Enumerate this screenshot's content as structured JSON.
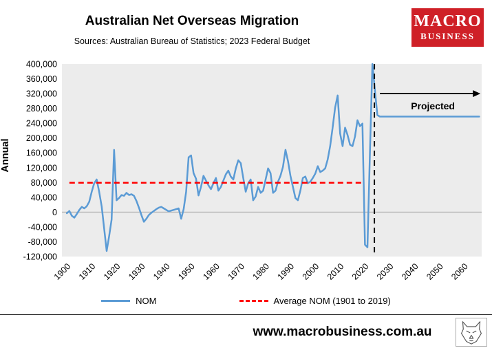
{
  "header": {
    "title": "Australian Net Overseas Migration",
    "subtitle": "Sources: Australian Bureau of Statistics; 2023 Federal Budget"
  },
  "logo": {
    "line1": "MACRO",
    "line2": "BUSINESS",
    "bg_color": "#cf2027",
    "text_color": "#ffffff"
  },
  "chart_data": {
    "type": "line",
    "title": "Australian Net Overseas Migration",
    "xlabel": "",
    "ylabel": "Annual",
    "ylim": [
      -120000,
      400000
    ],
    "ytick_step": 40000,
    "xlim": [
      1898,
      2067
    ],
    "xticks": [
      1900,
      1910,
      1920,
      1930,
      1940,
      1950,
      1960,
      1970,
      1980,
      1990,
      2000,
      2010,
      2020,
      2030,
      2040,
      2050,
      2060
    ],
    "plot_bg": "#ececec",
    "zero_line_color": "#a0a0a0",
    "series": [
      {
        "name": "NOM",
        "color": "#5b9bd5",
        "style": "solid",
        "points": [
          [
            1900,
            -3000
          ],
          [
            1901,
            3000
          ],
          [
            1902,
            -10000
          ],
          [
            1903,
            -15000
          ],
          [
            1904,
            -5000
          ],
          [
            1905,
            6000
          ],
          [
            1906,
            14000
          ],
          [
            1907,
            10000
          ],
          [
            1908,
            16000
          ],
          [
            1909,
            28000
          ],
          [
            1910,
            55000
          ],
          [
            1911,
            78000
          ],
          [
            1912,
            88000
          ],
          [
            1913,
            55000
          ],
          [
            1914,
            15000
          ],
          [
            1915,
            -45000
          ],
          [
            1916,
            -105000
          ],
          [
            1917,
            -65000
          ],
          [
            1918,
            -20000
          ],
          [
            1919,
            168000
          ],
          [
            1920,
            32000
          ],
          [
            1921,
            38000
          ],
          [
            1922,
            46000
          ],
          [
            1923,
            44000
          ],
          [
            1924,
            52000
          ],
          [
            1925,
            46000
          ],
          [
            1926,
            48000
          ],
          [
            1927,
            44000
          ],
          [
            1928,
            30000
          ],
          [
            1929,
            12000
          ],
          [
            1930,
            -8000
          ],
          [
            1931,
            -26000
          ],
          [
            1932,
            -18000
          ],
          [
            1933,
            -8000
          ],
          [
            1934,
            -2000
          ],
          [
            1935,
            3000
          ],
          [
            1936,
            8000
          ],
          [
            1937,
            12000
          ],
          [
            1938,
            14000
          ],
          [
            1939,
            10000
          ],
          [
            1940,
            6000
          ],
          [
            1941,
            2000
          ],
          [
            1942,
            4000
          ],
          [
            1943,
            6000
          ],
          [
            1944,
            8000
          ],
          [
            1945,
            10000
          ],
          [
            1946,
            -18000
          ],
          [
            1947,
            8000
          ],
          [
            1948,
            55000
          ],
          [
            1949,
            148000
          ],
          [
            1950,
            153000
          ],
          [
            1951,
            105000
          ],
          [
            1952,
            90000
          ],
          [
            1953,
            45000
          ],
          [
            1954,
            68000
          ],
          [
            1955,
            98000
          ],
          [
            1956,
            85000
          ],
          [
            1957,
            72000
          ],
          [
            1958,
            62000
          ],
          [
            1959,
            78000
          ],
          [
            1960,
            92000
          ],
          [
            1961,
            58000
          ],
          [
            1962,
            68000
          ],
          [
            1963,
            85000
          ],
          [
            1964,
            102000
          ],
          [
            1965,
            112000
          ],
          [
            1966,
            96000
          ],
          [
            1967,
            88000
          ],
          [
            1968,
            118000
          ],
          [
            1969,
            140000
          ],
          [
            1970,
            132000
          ],
          [
            1971,
            92000
          ],
          [
            1972,
            55000
          ],
          [
            1973,
            78000
          ],
          [
            1974,
            88000
          ],
          [
            1975,
            32000
          ],
          [
            1976,
            42000
          ],
          [
            1977,
            68000
          ],
          [
            1978,
            52000
          ],
          [
            1979,
            58000
          ],
          [
            1980,
            88000
          ],
          [
            1981,
            118000
          ],
          [
            1982,
            105000
          ],
          [
            1983,
            52000
          ],
          [
            1984,
            58000
          ],
          [
            1985,
            82000
          ],
          [
            1986,
            98000
          ],
          [
            1987,
            122000
          ],
          [
            1988,
            168000
          ],
          [
            1989,
            138000
          ],
          [
            1990,
            98000
          ],
          [
            1991,
            68000
          ],
          [
            1992,
            38000
          ],
          [
            1993,
            32000
          ],
          [
            1994,
            58000
          ],
          [
            1995,
            92000
          ],
          [
            1996,
            96000
          ],
          [
            1997,
            78000
          ],
          [
            1998,
            82000
          ],
          [
            1999,
            92000
          ],
          [
            2000,
            104000
          ],
          [
            2001,
            124000
          ],
          [
            2002,
            108000
          ],
          [
            2003,
            112000
          ],
          [
            2004,
            118000
          ],
          [
            2005,
            142000
          ],
          [
            2006,
            178000
          ],
          [
            2007,
            228000
          ],
          [
            2008,
            282000
          ],
          [
            2009,
            315000
          ],
          [
            2010,
            212000
          ],
          [
            2011,
            178000
          ],
          [
            2012,
            228000
          ],
          [
            2013,
            208000
          ],
          [
            2014,
            182000
          ],
          [
            2015,
            178000
          ],
          [
            2016,
            204000
          ],
          [
            2017,
            248000
          ],
          [
            2018,
            232000
          ],
          [
            2019,
            239000
          ],
          [
            2020,
            -88000
          ],
          [
            2021,
            -95000
          ],
          [
            2022,
            160000
          ],
          [
            2023,
            400000
          ],
          [
            2024,
            330000
          ],
          [
            2025,
            262000
          ],
          [
            2026,
            258000
          ],
          [
            2066,
            258000
          ]
        ]
      },
      {
        "name": "Average NOM (1901 to 2019)",
        "color": "#ff0000",
        "style": "dashed",
        "points": [
          [
            1901,
            79000
          ],
          [
            2019,
            79000
          ]
        ]
      }
    ],
    "annotations": {
      "vline": {
        "x": 2023.8,
        "color": "#000000",
        "style": "dashed"
      },
      "arrow": {
        "x_from": 2026,
        "x_to": 2066.5,
        "y": 320000,
        "color": "#000000",
        "label": "Projected"
      }
    },
    "legend_position": "bottom"
  },
  "legend": {
    "items": [
      {
        "label": "NOM",
        "color": "#5b9bd5",
        "dashed": false
      },
      {
        "label": "Average NOM (1901 to 2019)",
        "color": "#ff0000",
        "dashed": true
      }
    ]
  },
  "footer": {
    "url": "www.macrobusiness.com.au",
    "wolf_logo": "wolf-sketch-icon"
  }
}
